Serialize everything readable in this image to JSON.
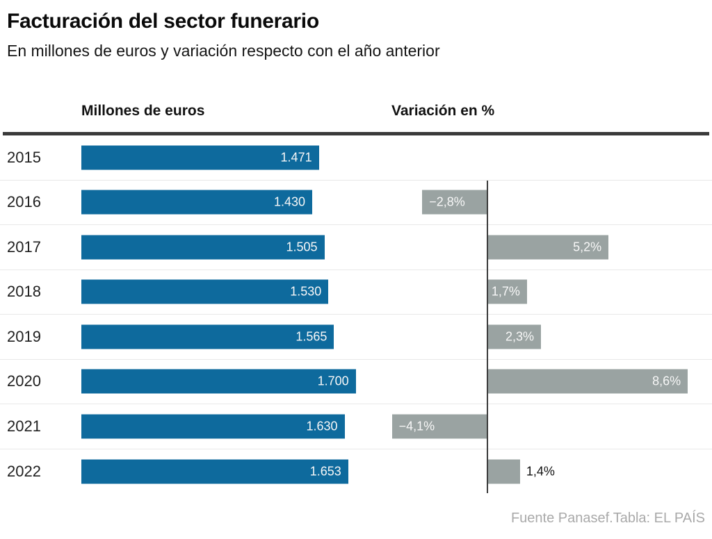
{
  "header": {
    "title": "Facturación del sector funerario",
    "subtitle": "En millones de euros y variación respecto con el año anterior"
  },
  "columns": {
    "euros_label": "Millones de euros",
    "variation_label": "Variación en %"
  },
  "footer": {
    "source": "Fuente Panasef.Tabla: EL PAÍS"
  },
  "colors": {
    "bar_blue": "#0e6a9d",
    "bar_gray": "#9aa3a2",
    "axis_dark": "#3a3a3a",
    "separator": "#e8e8e8",
    "footer_gray": "#a9a9a9"
  },
  "chart_data": {
    "type": "bar",
    "orientation": "horizontal",
    "title": "Facturación del sector funerario",
    "subtitle": "En millones de euros y variación respecto con el año anterior",
    "categories": [
      "2015",
      "2016",
      "2017",
      "2018",
      "2019",
      "2020",
      "2021",
      "2022"
    ],
    "series": [
      {
        "name": "Millones de euros",
        "values": [
          1471,
          1430,
          1505,
          1530,
          1565,
          1700,
          1630,
          1653
        ],
        "labels": [
          "1.471",
          "1.430",
          "1.505",
          "1.530",
          "1.565",
          "1.700",
          "1.630",
          "1.653"
        ]
      },
      {
        "name": "Variación en %",
        "values": [
          null,
          -2.8,
          5.2,
          1.7,
          2.3,
          8.6,
          -4.1,
          1.4
        ],
        "labels": [
          "",
          "−2,8%",
          "5,2%",
          "1,7%",
          "2,3%",
          "8,6%",
          "−4,1%",
          "1,4%"
        ]
      }
    ],
    "grid": "row-separators-only",
    "legend": "column-headers",
    "source": "Fuente Panasef.Tabla: EL PAÍS"
  }
}
